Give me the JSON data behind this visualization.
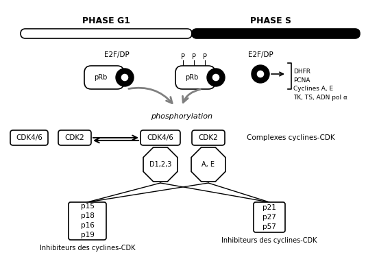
{
  "title": "",
  "bg_color": "#ffffff",
  "phase_g1_label": "PHASE G1",
  "phase_s_label": "PHASE S",
  "phosphorylation_label": "phosphorylation",
  "complexes_label": "Complexes cyclines-CDK",
  "inhibitors1_label": "Inhibiteurs des cyclines-CDK",
  "inhibitors2_label": "Inhibiteurs des cyclines-CDK",
  "genes_list": "DHFR\nPCNA\nCyclines A, E\nTK, TS, ADN pol α",
  "p_group1": "p15\np18\np16\np19",
  "p_group2": "p21\np27\np57"
}
